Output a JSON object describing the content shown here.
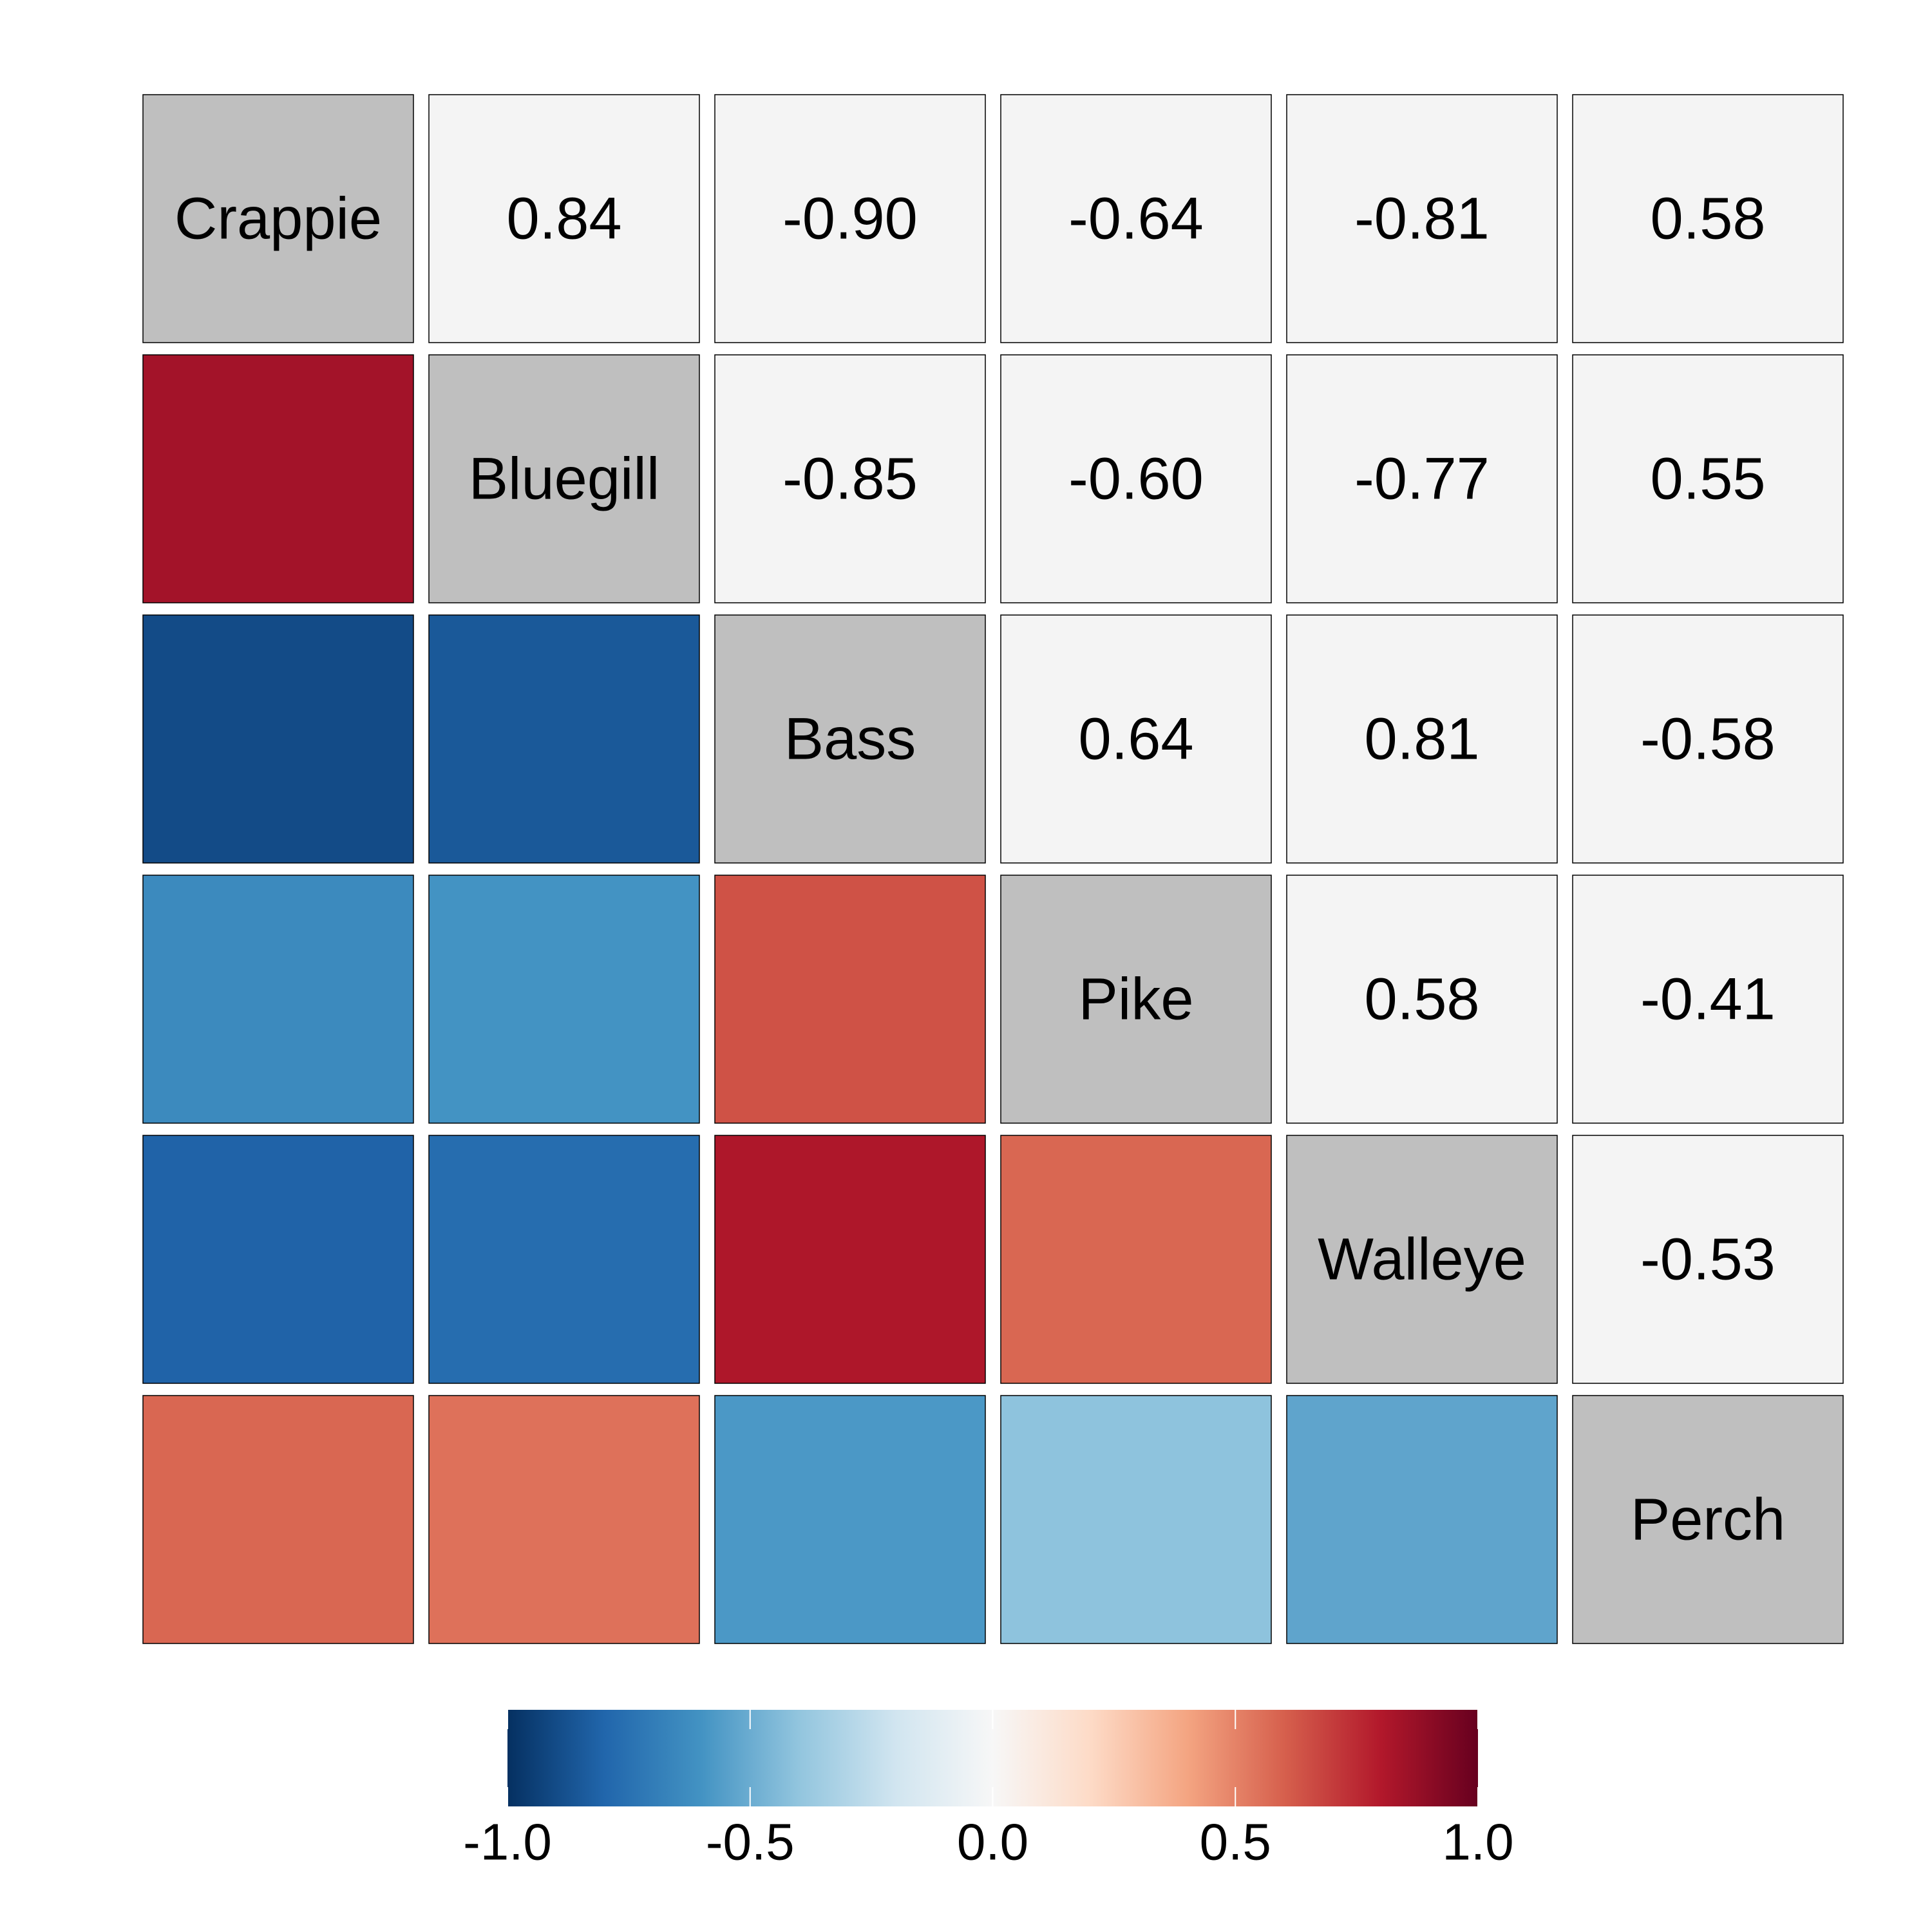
{
  "chart_data": {
    "type": "heatmap",
    "variables": [
      "Crappie",
      "Bluegill",
      "Bass",
      "Pike",
      "Walleye",
      "Perch"
    ],
    "matrix": [
      [
        1.0,
        0.84,
        -0.9,
        -0.64,
        -0.81,
        0.58
      ],
      [
        0.84,
        1.0,
        -0.85,
        -0.6,
        -0.77,
        0.55
      ],
      [
        -0.9,
        -0.85,
        1.0,
        0.64,
        0.81,
        -0.58
      ],
      [
        -0.64,
        -0.6,
        0.64,
        1.0,
        0.58,
        -0.41
      ],
      [
        -0.81,
        -0.77,
        0.81,
        0.58,
        1.0,
        -0.53
      ],
      [
        0.58,
        0.55,
        -0.58,
        -0.41,
        -0.53,
        1.0
      ]
    ],
    "upper_labels": [
      [
        "",
        "0.84",
        "-0.90",
        "-0.64",
        "-0.81",
        "0.58"
      ],
      [
        "",
        "",
        "-0.85",
        "-0.60",
        "-0.77",
        "0.55"
      ],
      [
        "",
        "",
        "",
        "0.64",
        "0.81",
        "-0.58"
      ],
      [
        "",
        "",
        "",
        "",
        "0.58",
        "-0.41"
      ],
      [
        "",
        "",
        "",
        "",
        "",
        "-0.53"
      ],
      [
        "",
        "",
        "",
        "",
        "",
        ""
      ]
    ],
    "lower_triangle": "color",
    "upper_triangle": "value",
    "diagonal": "variable name",
    "colorbar": {
      "range": [
        -1.0,
        1.0
      ],
      "ticks": [
        -1.0,
        -0.5,
        0.0,
        0.5,
        1.0
      ],
      "tick_labels": [
        "-1.0",
        "-0.5",
        "0.0",
        "0.5",
        "1.0"
      ],
      "placement": "bottom"
    },
    "colorscale": [
      "#053061",
      "#2166ac",
      "#4393c3",
      "#92c5de",
      "#d1e5f0",
      "#f7f7f7",
      "#fddbc7",
      "#f4a582",
      "#d6604d",
      "#b2182b",
      "#67001f"
    ],
    "colors": {
      "diagonal_fill": "#bfbfbf",
      "upper_fill": "#f4f4f4",
      "cell_stroke": "#000000"
    }
  }
}
